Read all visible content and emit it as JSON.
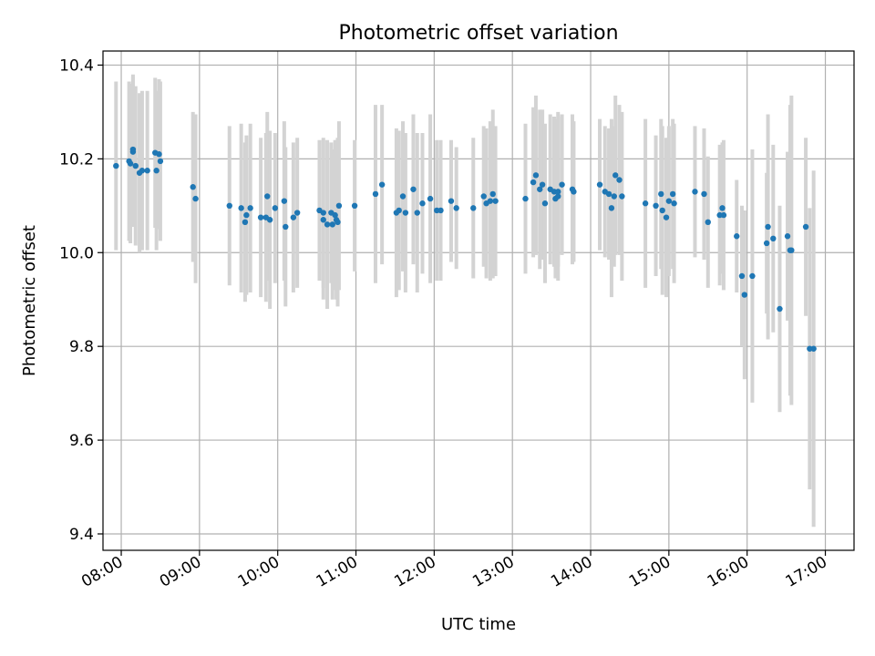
{
  "chart_data": {
    "type": "scatter",
    "title": "Photometric offset variation",
    "xlabel": "UTC time",
    "ylabel": "Photometric offset",
    "xlim": [
      "07:46",
      "17:22"
    ],
    "ylim": [
      9.365,
      10.43
    ],
    "grid": true,
    "x_ticks": [
      "08:00",
      "09:00",
      "10:00",
      "11:00",
      "12:00",
      "13:00",
      "14:00",
      "15:00",
      "16:00",
      "17:00"
    ],
    "y_ticks": [
      9.4,
      9.6,
      9.8,
      10.0,
      10.2,
      10.4
    ],
    "y_tick_labels": [
      "9.4",
      "9.6",
      "9.8",
      "10.0",
      "10.2",
      "10.4"
    ],
    "colors": {
      "points": "#1f77b4",
      "error_bars": "#d3d3d3",
      "grid": "#b0b0b0"
    },
    "series": [
      {
        "x": [
          "07:56",
          "08:06",
          "08:07",
          "08:09",
          "08:09",
          "08:11",
          "08:14",
          "08:16",
          "08:20",
          "08:26",
          "08:27",
          "08:29",
          "08:30",
          "08:55",
          "08:57",
          "09:23",
          "09:32",
          "09:35",
          "09:36",
          "09:39",
          "09:47",
          "09:51",
          "09:52",
          "09:54",
          "09:58",
          "10:05",
          "10:06",
          "10:12",
          "10:15",
          "10:32",
          "10:35",
          "10:35",
          "10:38",
          "10:41",
          "10:42",
          "10:44",
          "10:45",
          "10:46",
          "10:47",
          "10:59",
          "11:15",
          "11:20",
          "11:31",
          "11:33",
          "11:36",
          "11:38",
          "11:44",
          "11:47",
          "11:51",
          "11:57",
          "12:02",
          "12:05",
          "12:13",
          "12:17",
          "12:30",
          "12:38",
          "12:40",
          "12:43",
          "12:45",
          "12:47",
          "13:10",
          "13:16",
          "13:18",
          "13:21",
          "13:23",
          "13:25",
          "13:29",
          "13:32",
          "13:33",
          "13:35",
          "13:35",
          "13:38",
          "13:46",
          "13:47",
          "14:07",
          "14:11",
          "14:14",
          "14:16",
          "14:18",
          "14:19",
          "14:22",
          "14:24",
          "14:42",
          "14:50",
          "14:54",
          "14:55",
          "14:58",
          "15:00",
          "15:03",
          "15:04",
          "15:20",
          "15:27",
          "15:30",
          "15:39",
          "15:41",
          "15:42",
          "15:52",
          "15:56",
          "15:58",
          "16:04",
          "16:15",
          "16:16",
          "16:20",
          "16:25",
          "16:31",
          "16:33",
          "16:34",
          "16:45",
          "16:48",
          "16:51"
        ],
        "y": [
          10.185,
          10.195,
          10.19,
          10.215,
          10.22,
          10.185,
          10.17,
          10.175,
          10.175,
          10.213,
          10.175,
          10.21,
          10.195,
          10.14,
          10.115,
          10.1,
          10.095,
          10.065,
          10.08,
          10.095,
          10.075,
          10.075,
          10.12,
          10.07,
          10.095,
          10.11,
          10.055,
          10.075,
          10.085,
          10.09,
          10.07,
          10.085,
          10.06,
          10.085,
          10.06,
          10.08,
          10.07,
          10.065,
          10.1,
          10.1,
          10.125,
          10.145,
          10.085,
          10.09,
          10.12,
          10.085,
          10.135,
          10.085,
          10.105,
          10.115,
          10.09,
          10.09,
          10.11,
          10.095,
          10.095,
          10.12,
          10.105,
          10.11,
          10.125,
          10.11,
          10.115,
          10.15,
          10.165,
          10.135,
          10.145,
          10.105,
          10.135,
          10.13,
          10.115,
          10.12,
          10.13,
          10.145,
          10.135,
          10.13,
          10.145,
          10.13,
          10.125,
          10.095,
          10.12,
          10.165,
          10.155,
          10.12,
          10.105,
          10.1,
          10.125,
          10.09,
          10.075,
          10.11,
          10.125,
          10.105,
          10.13,
          10.125,
          10.065,
          10.08,
          10.095,
          10.08,
          10.035,
          9.95,
          9.91,
          9.95,
          10.02,
          10.055,
          10.03,
          9.88,
          10.035,
          10.005,
          10.005,
          10.055,
          9.795,
          9.795
        ],
        "yerr": [
          0.18,
          0.17,
          0.17,
          0.16,
          0.16,
          0.17,
          0.17,
          0.17,
          0.17,
          0.16,
          0.17,
          0.16,
          0.17,
          0.16,
          0.18,
          0.17,
          0.18,
          0.17,
          0.17,
          0.18,
          0.17,
          0.18,
          0.18,
          0.19,
          0.16,
          0.17,
          0.17,
          0.16,
          0.16,
          0.15,
          0.17,
          0.16,
          0.18,
          0.15,
          0.16,
          0.16,
          0.17,
          0.18,
          0.18,
          0.14,
          0.19,
          0.17,
          0.18,
          0.17,
          0.16,
          0.17,
          0.16,
          0.17,
          0.15,
          0.18,
          0.15,
          0.15,
          0.13,
          0.13,
          0.15,
          0.15,
          0.16,
          0.17,
          0.18,
          0.16,
          0.16,
          0.16,
          0.17,
          0.17,
          0.16,
          0.17,
          0.16,
          0.16,
          0.17,
          0.18,
          0.16,
          0.15,
          0.16,
          0.15,
          0.14,
          0.14,
          0.14,
          0.19,
          0.15,
          0.17,
          0.16,
          0.18,
          0.18,
          0.15,
          0.16,
          0.18,
          0.17,
          0.16,
          0.16,
          0.17,
          0.14,
          0.14,
          0.14,
          0.15,
          0.14,
          0.16,
          0.12,
          0.15,
          0.18,
          0.27,
          0.15,
          0.24,
          0.2,
          0.22,
          0.18,
          0.31,
          0.33,
          0.19,
          0.3,
          0.38
        ]
      }
    ]
  }
}
